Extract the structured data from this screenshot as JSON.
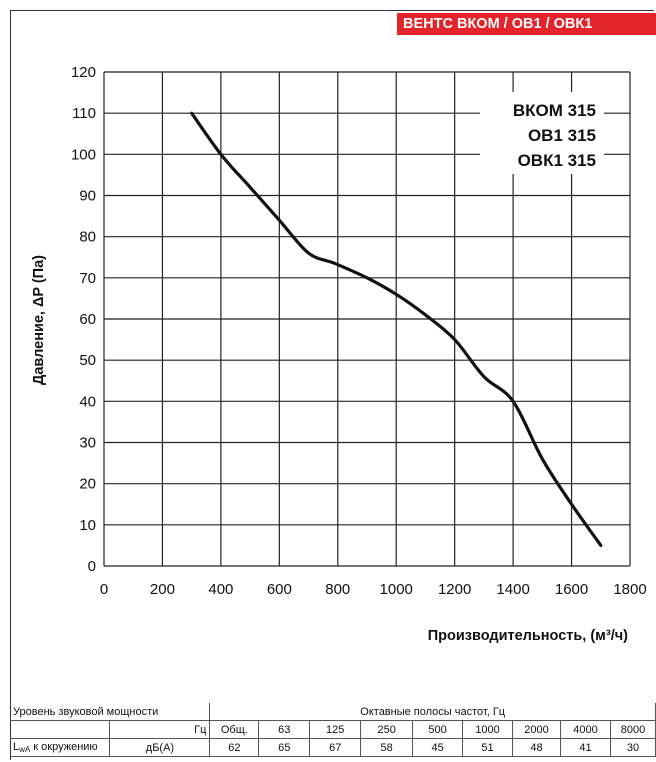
{
  "header_tag": "ВЕНТС ВКОМ / ОВ1 / ОВК1",
  "models": [
    "ВКОМ 315",
    "ОВ1 315",
    "ОВК1 315"
  ],
  "chart_data": {
    "type": "line",
    "xlabel": "Производительность, (м³/ч)",
    "ylabel": "Давление, ΔP (Па)",
    "xlim": [
      0,
      1800
    ],
    "ylim": [
      0,
      120
    ],
    "x_ticks": [
      0,
      200,
      400,
      600,
      800,
      1000,
      1200,
      1400,
      1600,
      1800
    ],
    "y_ticks": [
      0,
      10,
      20,
      30,
      40,
      50,
      60,
      70,
      80,
      90,
      100,
      110,
      120
    ],
    "grid": true,
    "series": [
      {
        "x": [
          300,
          400,
          500,
          600,
          700,
          790,
          900,
          1000,
          1100,
          1200,
          1300,
          1400,
          1500,
          1600,
          1700
        ],
        "y": [
          110,
          100,
          92,
          84,
          76,
          73.5,
          70,
          66,
          61,
          55,
          46,
          40,
          26,
          15,
          5
        ]
      }
    ]
  },
  "sound_table": {
    "row1": {
      "label": "Уровень звуковой мощности",
      "span": "Октавные полосы частот, Гц"
    },
    "row2": {
      "unit": "Гц",
      "values": [
        "Общ.",
        "63",
        "125",
        "250",
        "500",
        "1000",
        "2000",
        "4000",
        "8000"
      ]
    },
    "row3": {
      "label_main": "L",
      "label_sub": "wA",
      "label_rest": " к окружению",
      "unit": "дБ(А)",
      "values": [
        "62",
        "65",
        "67",
        "58",
        "45",
        "51",
        "48",
        "41",
        "30"
      ]
    }
  },
  "colors": {
    "accent": "#e3242b",
    "curve": "#111111",
    "grid": "#222222"
  }
}
